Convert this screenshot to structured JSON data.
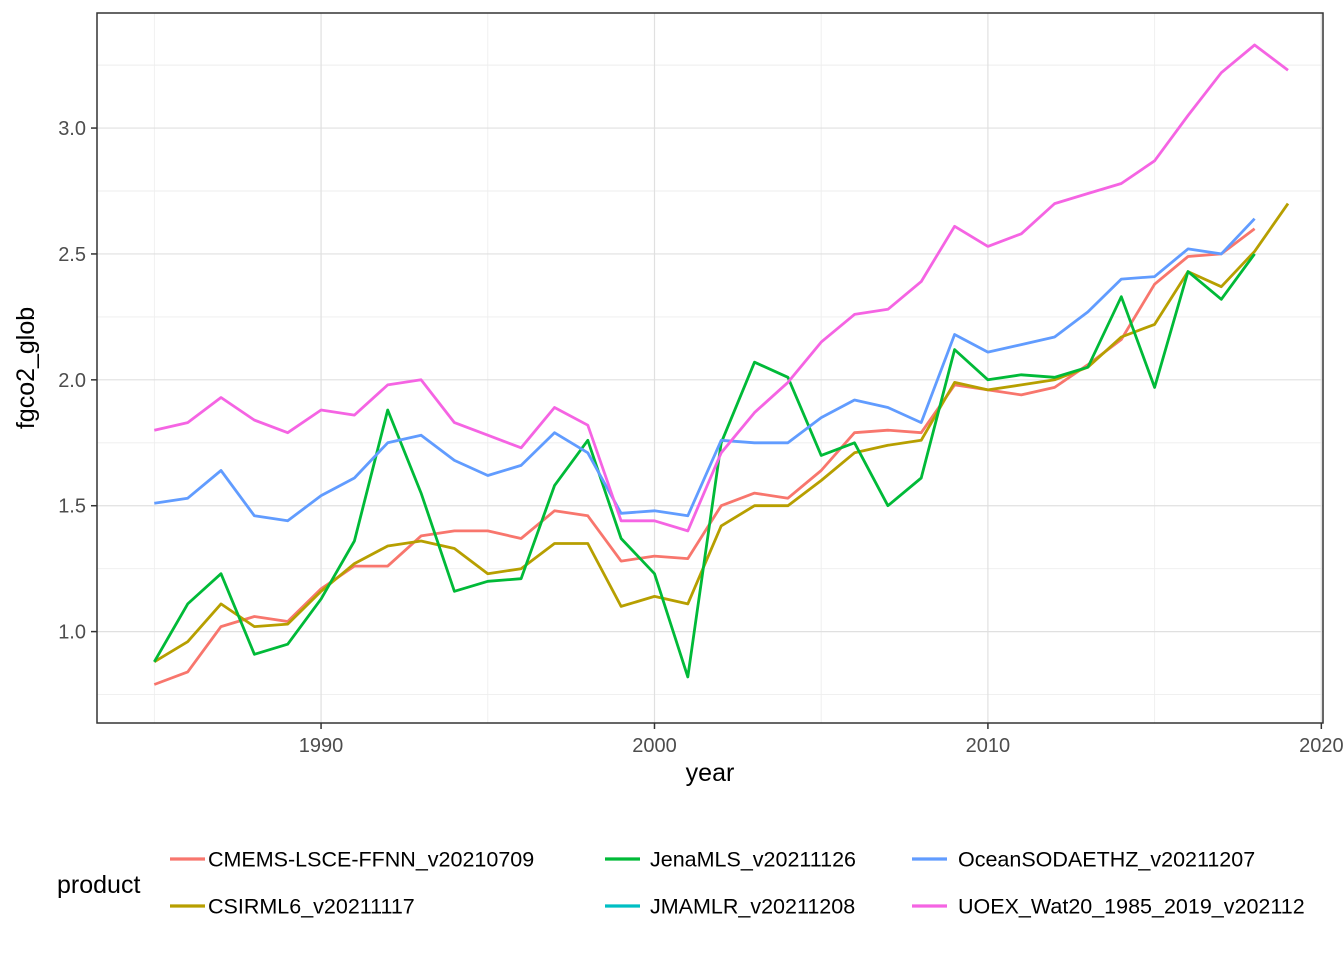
{
  "chart_data": {
    "type": "line",
    "title": "",
    "xlabel": "year",
    "ylabel": "fgco2_glob",
    "legend_title": "product",
    "legend_position": "bottom",
    "grid": true,
    "xlim": [
      1983.28,
      2020.05
    ],
    "ylim": [
      0.637,
      3.457
    ],
    "x_ticks": [
      1990,
      2000,
      2010,
      2020
    ],
    "x_tick_labels": [
      "1990",
      "2000",
      "2010",
      "2020"
    ],
    "x_minor_ticks": [
      1985,
      1995,
      2005,
      2015
    ],
    "y_ticks": [
      1.0,
      1.5,
      2.0,
      2.5,
      3.0
    ],
    "y_tick_labels": [
      "1.0",
      "1.5",
      "2.0",
      "2.5",
      "3.0"
    ],
    "y_minor_ticks": [
      0.75,
      1.25,
      1.75,
      2.25,
      2.75,
      3.25
    ],
    "series": [
      {
        "name": "CMEMS-LSCE-FFNN_v20210709",
        "color": "#F8766D",
        "start_year": 1985,
        "values": [
          0.79,
          0.84,
          1.02,
          1.06,
          1.04,
          1.17,
          1.26,
          1.26,
          1.38,
          1.4,
          1.4,
          1.37,
          1.48,
          1.46,
          1.28,
          1.3,
          1.29,
          1.5,
          1.55,
          1.53,
          1.64,
          1.79,
          1.8,
          1.79,
          1.98,
          1.96,
          1.94,
          1.97,
          2.06,
          2.16,
          2.38,
          2.49,
          2.5,
          2.6
        ]
      },
      {
        "name": "CSIRML6_v20211117",
        "color": "#B79F00",
        "start_year": 1985,
        "values": [
          0.88,
          0.96,
          1.11,
          1.02,
          1.03,
          1.16,
          1.27,
          1.34,
          1.36,
          1.33,
          1.23,
          1.25,
          1.35,
          1.35,
          1.1,
          1.14,
          1.11,
          1.42,
          1.5,
          1.5,
          1.6,
          1.71,
          1.74,
          1.76,
          1.99,
          1.96,
          1.98,
          2.0,
          2.05,
          2.17,
          2.22,
          2.43,
          2.37,
          2.51,
          2.7
        ]
      },
      {
        "name": "JenaMLS_v20211126",
        "color": "#00BA38",
        "start_year": 1985,
        "values": [
          0.88,
          1.11,
          1.23,
          0.91,
          0.95,
          1.13,
          1.36,
          1.88,
          1.55,
          1.16,
          1.2,
          1.21,
          1.58,
          1.76,
          1.37,
          1.23,
          0.82,
          1.75,
          2.07,
          2.01,
          1.7,
          1.75,
          1.5,
          1.61,
          2.12,
          2.0,
          2.02,
          2.01,
          2.05,
          2.33,
          1.97,
          2.43,
          2.32,
          2.5
        ]
      },
      {
        "name": "JMAMLR_v20211208",
        "color": "#00BFC4",
        "start_year": 1985,
        "values": []
      },
      {
        "name": "OceanSODAETHZ_v20211207",
        "color": "#619CFF",
        "start_year": 1985,
        "values": [
          1.51,
          1.53,
          1.64,
          1.46,
          1.44,
          1.54,
          1.61,
          1.75,
          1.78,
          1.68,
          1.62,
          1.66,
          1.79,
          1.71,
          1.47,
          1.48,
          1.46,
          1.76,
          1.75,
          1.75,
          1.85,
          1.92,
          1.89,
          1.83,
          2.18,
          2.11,
          2.14,
          2.17,
          2.27,
          2.4,
          2.41,
          2.52,
          2.5,
          2.64
        ]
      },
      {
        "name": "UOEX_Wat20_1985_2019_v202112",
        "color": "#F564E3",
        "start_year": 1985,
        "values": [
          1.8,
          1.83,
          1.93,
          1.84,
          1.79,
          1.88,
          1.86,
          1.98,
          2.0,
          1.83,
          1.78,
          1.73,
          1.89,
          1.82,
          1.44,
          1.44,
          1.4,
          1.71,
          1.87,
          1.99,
          2.15,
          2.26,
          2.28,
          2.39,
          2.61,
          2.53,
          2.58,
          2.7,
          2.74,
          2.78,
          2.87,
          3.05,
          3.22,
          3.33,
          3.23
        ]
      }
    ],
    "colors": {
      "background": "#FFFFFF",
      "panel_border": "#343434",
      "grid_major": "#E0E0E0",
      "grid_minor": "#EEEEEE",
      "tick": "#333333",
      "tick_label": "#4D4D4D",
      "axis_title": "#000000"
    }
  }
}
